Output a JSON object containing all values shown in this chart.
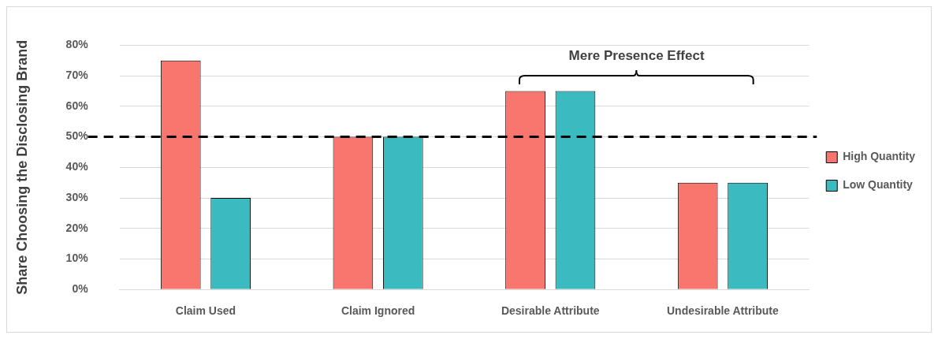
{
  "chart_data": {
    "type": "bar",
    "ylabel": "Share Choosing the Disclosing Brand",
    "categories": [
      "Claim Used",
      "Claim Ignored",
      "Desirable Attribute",
      "Undesirable Attribute"
    ],
    "series": [
      {
        "name": "High Quantity",
        "color": "#f8766d",
        "values": [
          75,
          50,
          65,
          35
        ]
      },
      {
        "name": "Low Quantity",
        "color": "#3bbbc0",
        "values": [
          30,
          50,
          65,
          35
        ]
      }
    ],
    "ylim": [
      0,
      80
    ],
    "yticks": [
      {
        "value": 0,
        "label": "0%"
      },
      {
        "value": 10,
        "label": "10%"
      },
      {
        "value": 20,
        "label": "20%"
      },
      {
        "value": 30,
        "label": "30%"
      },
      {
        "value": 40,
        "label": "40%"
      },
      {
        "value": 50,
        "label": "50%"
      },
      {
        "value": 60,
        "label": "60%"
      },
      {
        "value": 70,
        "label": "70%"
      },
      {
        "value": 80,
        "label": "80%"
      }
    ],
    "ref_lines": [
      {
        "axis": "y",
        "value": 50,
        "color": "#000000",
        "line_style": "dashed"
      }
    ],
    "annotations": [
      "Mere Presence Effect"
    ],
    "grid": "y",
    "legend": "right"
  }
}
